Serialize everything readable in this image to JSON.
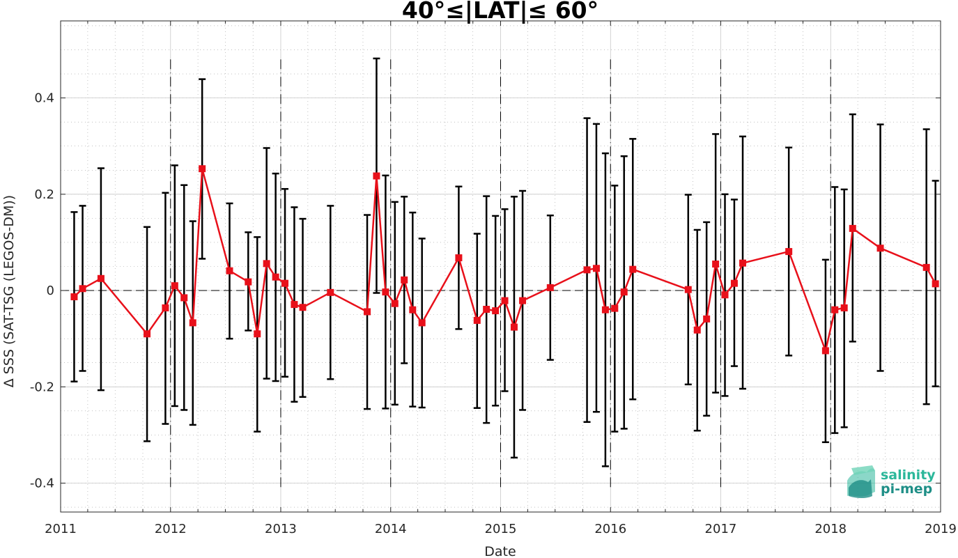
{
  "chart_data": {
    "type": "line",
    "title": "40°≤|LAT|≤ 60°",
    "xlabel": "Date",
    "ylabel": "Δ SSS (SAT-TSG (LEGOS-DM))",
    "xlim": [
      "2011-01-01",
      "2019-01-01"
    ],
    "ylim": [
      -0.46,
      0.56
    ],
    "x_ticks": [
      "2011",
      "2012",
      "2013",
      "2014",
      "2015",
      "2016",
      "2017",
      "2018",
      "2019"
    ],
    "y_ticks": [
      -0.4,
      -0.2,
      0,
      0.2,
      0.4
    ],
    "y_tick_labels": [
      "-0.4",
      "-0.2",
      "0",
      "0.2",
      "0.4"
    ],
    "grid": true,
    "year_separators": [
      "2012-01-01",
      "2013-01-01",
      "2014-01-01",
      "2015-01-01",
      "2016-01-01",
      "2017-01-01",
      "2018-01-01"
    ],
    "colors": {
      "line": "#e8101a",
      "errorbar": "#000000",
      "zero_line": "#000000"
    },
    "series": [
      {
        "x": [
          "2011-02-15",
          "2011-03-15",
          "2011-05-15",
          "2011-10-15",
          "2011-12-15",
          "2012-01-15",
          "2012-02-15",
          "2012-03-15",
          "2012-04-15",
          "2012-07-15",
          "2012-09-15",
          "2012-10-15",
          "2012-11-15",
          "2012-12-15",
          "2013-01-15",
          "2013-02-15",
          "2013-03-15",
          "2013-06-15",
          "2013-10-15",
          "2013-11-15",
          "2013-12-15",
          "2014-01-15",
          "2014-02-15",
          "2014-03-15",
          "2014-04-15",
          "2014-08-15",
          "2014-10-15",
          "2014-11-15",
          "2014-12-15",
          "2015-01-15",
          "2015-02-15",
          "2015-03-15",
          "2015-06-15",
          "2015-10-15",
          "2015-11-15",
          "2015-12-15",
          "2016-01-15",
          "2016-02-15",
          "2016-03-15",
          "2016-09-15",
          "2016-10-15",
          "2016-11-15",
          "2016-12-15",
          "2017-01-15",
          "2017-02-15",
          "2017-03-15",
          "2017-08-15",
          "2017-12-15",
          "2018-01-15",
          "2018-02-15",
          "2018-03-15",
          "2018-06-15",
          "2018-11-15",
          "2018-12-15"
        ],
        "values": [
          -0.013,
          0.004,
          0.025,
          -0.09,
          -0.036,
          0.01,
          -0.015,
          -0.067,
          0.253,
          0.041,
          0.018,
          -0.09,
          0.056,
          0.028,
          0.015,
          -0.029,
          -0.035,
          -0.004,
          -0.044,
          0.238,
          -0.003,
          -0.027,
          0.022,
          -0.04,
          -0.067,
          0.068,
          -0.062,
          -0.039,
          -0.042,
          -0.021,
          -0.076,
          -0.021,
          0.006,
          0.043,
          0.046,
          -0.04,
          -0.037,
          -0.003,
          0.044,
          0.002,
          -0.082,
          -0.059,
          0.055,
          -0.009,
          0.015,
          0.057,
          0.081,
          -0.125,
          -0.04,
          -0.036,
          0.129,
          0.088,
          0.048,
          0.014
        ],
        "upper": [
          0.163,
          0.176,
          0.254,
          0.132,
          0.203,
          0.26,
          0.219,
          0.144,
          0.439,
          0.181,
          0.121,
          0.111,
          0.296,
          0.243,
          0.211,
          0.173,
          0.149,
          0.176,
          0.157,
          0.482,
          0.239,
          0.184,
          0.195,
          0.162,
          0.108,
          0.216,
          0.118,
          0.196,
          0.155,
          0.169,
          0.195,
          0.207,
          0.156,
          0.358,
          0.346,
          0.285,
          0.218,
          0.279,
          0.315,
          0.199,
          0.126,
          0.142,
          0.325,
          0.2,
          0.189,
          0.32,
          0.297,
          0.064,
          0.215,
          0.21,
          0.366,
          0.345,
          0.335,
          0.228
        ],
        "lower": [
          -0.189,
          -0.167,
          -0.207,
          -0.313,
          -0.277,
          -0.24,
          -0.248,
          -0.279,
          0.066,
          -0.1,
          -0.083,
          -0.293,
          -0.183,
          -0.188,
          -0.179,
          -0.231,
          -0.221,
          -0.184,
          -0.246,
          -0.005,
          -0.245,
          -0.237,
          -0.151,
          -0.241,
          -0.243,
          -0.08,
          -0.244,
          -0.275,
          -0.239,
          -0.209,
          -0.347,
          -0.248,
          -0.144,
          -0.273,
          -0.252,
          -0.365,
          -0.293,
          -0.287,
          -0.226,
          -0.195,
          -0.291,
          -0.26,
          -0.212,
          -0.219,
          -0.157,
          -0.204,
          -0.135,
          -0.315,
          -0.296,
          -0.284,
          -0.106,
          -0.167,
          -0.236,
          -0.199
        ]
      }
    ]
  },
  "logo": {
    "line1": "salinity",
    "line2": "pi-mep",
    "color_top": "#2bb79a",
    "color_bottom": "#1f8f87"
  }
}
